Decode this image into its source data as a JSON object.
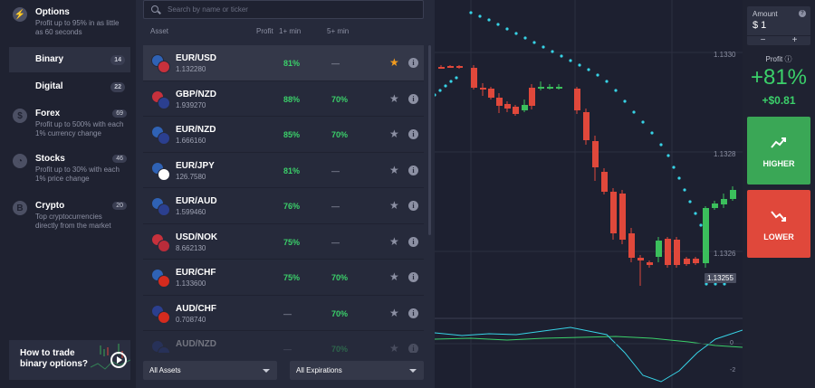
{
  "sidebar": {
    "categories": [
      {
        "title": "Options",
        "desc": "Profit up to 95% in as little as 60 seconds",
        "icon": "lightning-icon"
      },
      {
        "title": "Forex",
        "desc": "Profit up to 500% with each 1% currency change",
        "badge": "69",
        "icon": "dollar-icon"
      },
      {
        "title": "Stocks",
        "desc": "Profit up to 30% with each 1% price change",
        "badge": "46",
        "icon": "stocks-icon"
      },
      {
        "title": "Crypto",
        "desc": "Top cryptocurrencies directly from the market",
        "badge": "20",
        "icon": "bitcoin-icon"
      }
    ],
    "subcategories": [
      {
        "label": "Binary",
        "badge": "14",
        "active": true
      },
      {
        "label": "Digital",
        "badge": "22",
        "active": false
      }
    ],
    "promo": {
      "title": "How to trade binary options?"
    }
  },
  "asset_panel": {
    "search_placeholder": "Search by name or ticker",
    "headers": {
      "asset": "Asset",
      "profit": "Profit",
      "one_min": "1+ min",
      "five_min": "5+ min"
    },
    "rows": [
      {
        "name": "EUR/USD",
        "price": "1.132280",
        "p1": "81%",
        "p5": "—",
        "fav": true,
        "selected": true,
        "flags": [
          "#2f62b5",
          "#c7313c"
        ]
      },
      {
        "name": "GBP/NZD",
        "price": "1.939270",
        "p1": "88%",
        "p5": "70%",
        "fav": false,
        "flags": [
          "#c7313c",
          "#2b3f8f"
        ]
      },
      {
        "name": "EUR/NZD",
        "price": "1.666160",
        "p1": "85%",
        "p5": "70%",
        "fav": false,
        "flags": [
          "#2f62b5",
          "#2b3f8f"
        ]
      },
      {
        "name": "EUR/JPY",
        "price": "126.7580",
        "p1": "81%",
        "p5": "—",
        "fav": false,
        "flags": [
          "#2f62b5",
          "#ffffff"
        ]
      },
      {
        "name": "EUR/AUD",
        "price": "1.599460",
        "p1": "76%",
        "p5": "—",
        "fav": false,
        "flags": [
          "#2f62b5",
          "#2b3f8f"
        ]
      },
      {
        "name": "USD/NOK",
        "price": "8.662130",
        "p1": "75%",
        "p5": "—",
        "fav": false,
        "flags": [
          "#c7313c",
          "#ba2c3a"
        ]
      },
      {
        "name": "EUR/CHF",
        "price": "1.133600",
        "p1": "75%",
        "p5": "70%",
        "fav": false,
        "flags": [
          "#2f62b5",
          "#d52b1e"
        ]
      },
      {
        "name": "AUD/CHF",
        "price": "0.708740",
        "p1": "—",
        "p5": "70%",
        "fav": false,
        "flags": [
          "#2b3f8f",
          "#d52b1e"
        ]
      },
      {
        "name": "AUD/NZD",
        "price": "",
        "p1": "—",
        "p5": "70%",
        "fav": false,
        "faded": true,
        "flags": [
          "#2b3f8f",
          "#2b3f8f"
        ]
      }
    ],
    "filters": {
      "assets": "All Assets",
      "expirations": "All Expirations"
    }
  },
  "chart": {
    "price_labels": [
      "1.1330",
      "1.1328",
      "1.1326"
    ],
    "current_price": "1.13255",
    "oscillator_labels": [
      "0",
      "-2"
    ]
  },
  "trade": {
    "amount_label": "Amount",
    "amount_value": "$ 1",
    "minus": "−",
    "plus": "+",
    "profit_label": "Profit",
    "profit_pct": "+81%",
    "profit_usd": "+$0.81",
    "higher_label": "HIGHER",
    "lower_label": "LOWER",
    "colors": {
      "higher": "#3aa756",
      "lower": "#e0483b"
    }
  }
}
